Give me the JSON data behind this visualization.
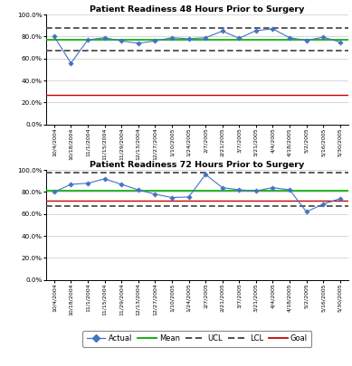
{
  "title_48": "Patient Readiness 48 Hours Prior to Surgery",
  "title_72": "Patient Readiness 72 Hours Prior to Surgery",
  "x_labels": [
    "10/4/2004",
    "10/18/2004",
    "11/1/2004",
    "11/15/2004",
    "11/29/2004",
    "12/13/2004",
    "12/27/2004",
    "1/10/2005",
    "1/24/2005",
    "2/7/2005",
    "2/21/2005",
    "3/7/2005",
    "3/21/2005",
    "4/4/2005",
    "4/18/2005",
    "5/2/2005",
    "5/16/2005",
    "5/30/2005"
  ],
  "actual_48": [
    0.8,
    0.558,
    0.77,
    0.79,
    0.76,
    0.74,
    0.76,
    0.79,
    0.78,
    0.79,
    0.85,
    0.785,
    0.855,
    0.87,
    0.79,
    0.765,
    0.795,
    0.75
  ],
  "actual_72": [
    0.8,
    0.87,
    0.88,
    0.92,
    0.87,
    0.82,
    0.78,
    0.75,
    0.755,
    0.96,
    0.84,
    0.82,
    0.81,
    0.84,
    0.82,
    0.62,
    0.69,
    0.74
  ],
  "mean_48": 0.77,
  "mean_72": 0.815,
  "ucl_48": 0.88,
  "lcl_48": 0.67,
  "ucl_72": 0.975,
  "lcl_72": 0.668,
  "goal_48": 0.27,
  "goal_72": 0.72,
  "ylim": [
    0.0,
    1.0
  ],
  "yticks": [
    0.0,
    0.2,
    0.4,
    0.6,
    0.8,
    1.0
  ],
  "ytick_labels": [
    "0.0%",
    "20.0%",
    "40.0%",
    "60.0%",
    "80.0%",
    "100.0%"
  ],
  "colors": {
    "actual": "#4472C4",
    "mean": "#00AA00",
    "ucl": "#404040",
    "lcl": "#404040",
    "goal": "#CC0000",
    "background": "#FFFFFF",
    "grid": "#C8C8C8"
  }
}
